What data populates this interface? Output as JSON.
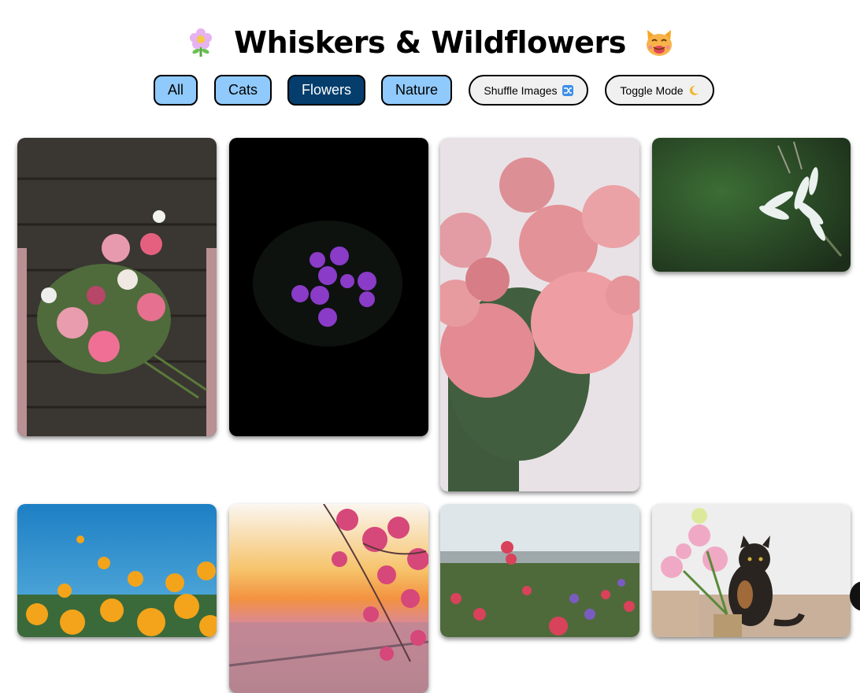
{
  "header": {
    "title": "Whiskers & Wildflowers",
    "left_emoji": "flower-icon",
    "right_emoji": "cat-face-icon"
  },
  "filters": [
    {
      "label": "All",
      "active": false
    },
    {
      "label": "Cats",
      "active": false
    },
    {
      "label": "Flowers",
      "active": true
    },
    {
      "label": "Nature",
      "active": false
    }
  ],
  "actions": {
    "shuffle_label": "Shuffle Images",
    "shuffle_icon": "shuffle-icon",
    "toggle_label": "Toggle Mode",
    "toggle_icon": "crescent-moon-icon"
  },
  "colors": {
    "filter_bg": "#90c9fb",
    "filter_active_bg": "#053e6d",
    "pill_bg": "#f0f0f0"
  },
  "gallery": [
    {
      "subject": "pink-rose-bouquet-on-wood"
    },
    {
      "subject": "purple-african-violet-on-black"
    },
    {
      "subject": "pink-peonies"
    },
    {
      "subject": "white-lilies-on-green"
    },
    {
      "subject": "yellow-poppies-blue-sky"
    },
    {
      "subject": "cherry-blossom-sunset-city"
    },
    {
      "subject": "wildflower-meadow"
    },
    {
      "subject": "tortoiseshell-cat-with-flowers"
    }
  ]
}
